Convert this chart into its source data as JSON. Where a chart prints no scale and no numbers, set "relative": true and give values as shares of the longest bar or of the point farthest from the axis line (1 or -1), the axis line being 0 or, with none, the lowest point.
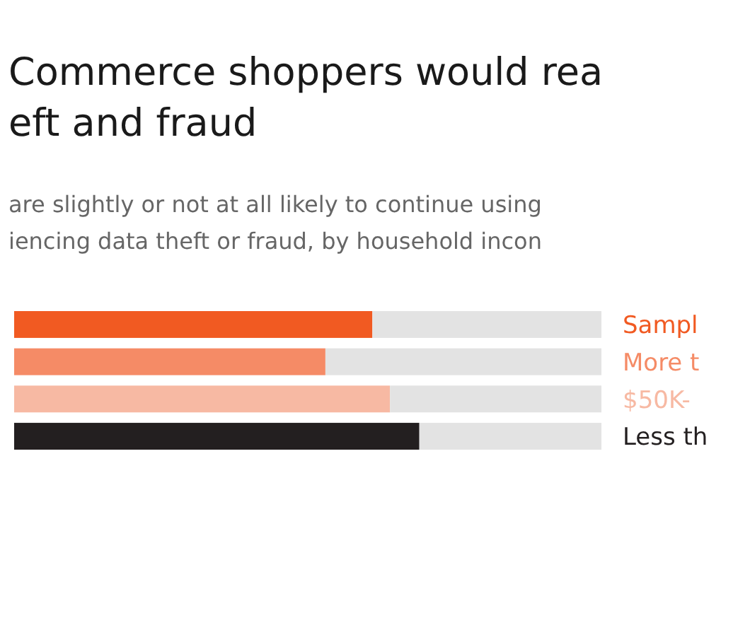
{
  "chart_data": {
    "type": "bar",
    "orientation": "horizontal",
    "stacked": true,
    "relative": true,
    "title": "Commerce shoppers would rea\neft and fraud",
    "subtitle": "are slightly or not at all likely to continue using\niencing data theft or fraud, by household incon",
    "categories": [
      "Sampl",
      "More t",
      "$50K-",
      "Less th"
    ],
    "series": [
      {
        "colors": [
          "#f15a22",
          "#f58b66",
          "#f7b9a3",
          "#231f20"
        ],
        "values": [
          0.61,
          0.53,
          0.64,
          0.69
        ]
      },
      {
        "color": "#e3e3e3",
        "values": [
          0.39,
          0.47,
          0.36,
          0.31
        ]
      }
    ],
    "grid": false
  }
}
